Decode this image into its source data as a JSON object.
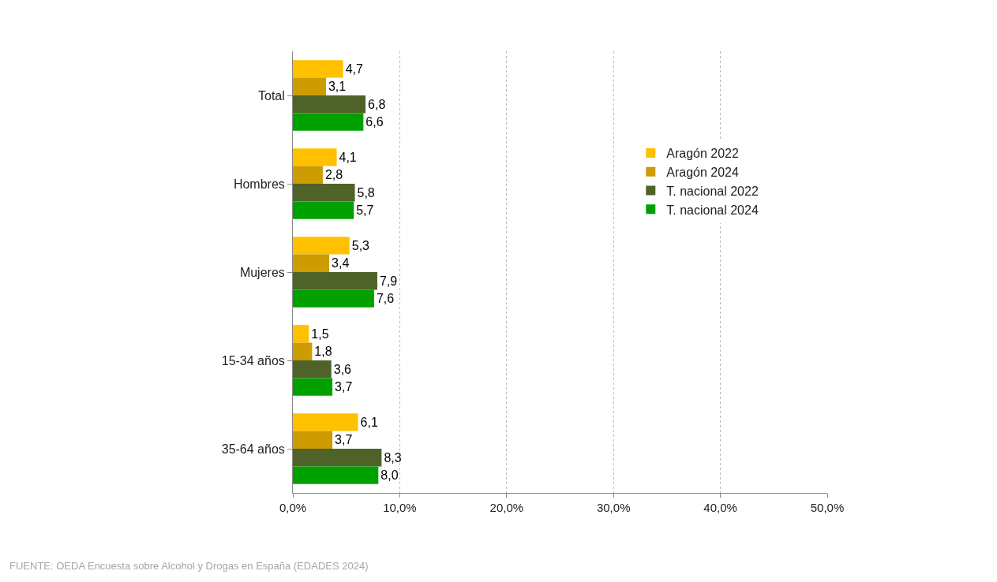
{
  "chart_data": {
    "type": "bar",
    "orientation": "horizontal",
    "categories": [
      "Total",
      "Hombres",
      "Mujeres",
      "15-34 años",
      "35-64 años"
    ],
    "series": [
      {
        "name": "Aragón 2022",
        "color": "#ffc000",
        "values": [
          4.7,
          4.1,
          5.3,
          1.5,
          6.1
        ],
        "value_labels": [
          "4,7",
          "4,1",
          "5,3",
          "1,5",
          "6,1"
        ]
      },
      {
        "name": "Aragón 2024",
        "color": "#cc9c00",
        "values": [
          3.1,
          2.8,
          3.4,
          1.8,
          3.7
        ],
        "value_labels": [
          "3,1",
          "2,8",
          "3,4",
          "1,8",
          "3,7"
        ]
      },
      {
        "name": "T. nacional 2022",
        "color": "#4f6228",
        "values": [
          6.8,
          5.8,
          7.9,
          3.6,
          8.3
        ],
        "value_labels": [
          "6,8",
          "5,8",
          "7,9",
          "3,6",
          "8,3"
        ]
      },
      {
        "name": "T. nacional 2024",
        "color": "#00a000",
        "values": [
          6.6,
          5.7,
          7.6,
          3.7,
          8.0
        ],
        "value_labels": [
          "6,6",
          "5,7",
          "7,6",
          "3,7",
          "8,0"
        ]
      }
    ],
    "xlim": [
      0,
      50
    ],
    "xticks": [
      {
        "value": 0,
        "label": "0,0%"
      },
      {
        "value": 10,
        "label": "10,0%"
      },
      {
        "value": 20,
        "label": "20,0%"
      },
      {
        "value": 30,
        "label": "30,0%"
      },
      {
        "value": 40,
        "label": "40,0%"
      },
      {
        "value": 50,
        "label": "50,0%"
      }
    ],
    "grid": "x",
    "legend": "right",
    "annotations": [
      "FUENTE: OEDA Encuesta sobre Alcohol y Drogas en España (EDADES 2024)"
    ]
  }
}
